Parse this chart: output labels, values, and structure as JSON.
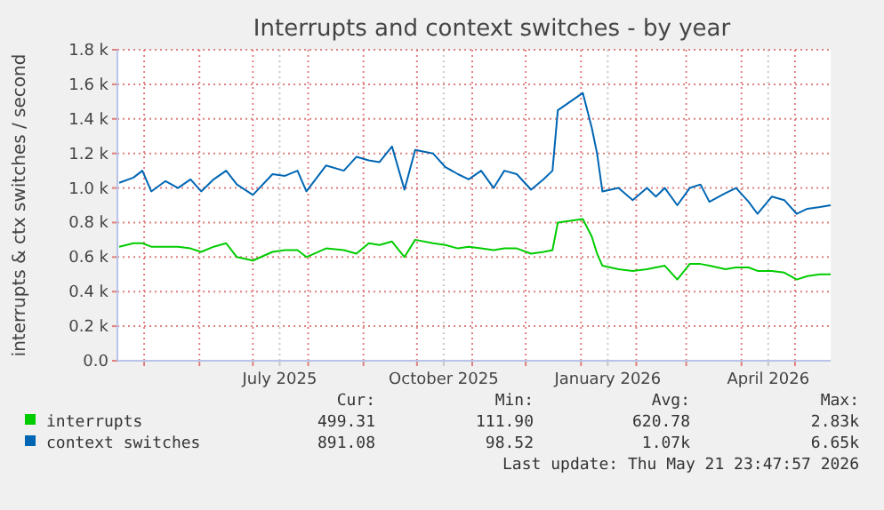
{
  "chart_data": {
    "type": "line",
    "title": "Interrupts and context switches - by year",
    "ylabel": "interrupts & ctx switches / second",
    "x": [
      "2025-04-17",
      "2025-04-25",
      "2025-04-30",
      "2025-05-05",
      "2025-05-13",
      "2025-05-20",
      "2025-05-27",
      "2025-06-02",
      "2025-06-09",
      "2025-06-16",
      "2025-06-22",
      "2025-07-01",
      "2025-07-12",
      "2025-07-19",
      "2025-07-26",
      "2025-07-31",
      "2025-08-11",
      "2025-08-21",
      "2025-08-28",
      "2025-09-04",
      "2025-09-10",
      "2025-09-17",
      "2025-09-24",
      "2025-09-30",
      "2025-10-10",
      "2025-10-17",
      "2025-10-24",
      "2025-10-30",
      "2025-11-06",
      "2025-11-13",
      "2025-11-19",
      "2025-11-26",
      "2025-12-04",
      "2025-12-11",
      "2025-12-16",
      "2025-12-19",
      "2025-12-26",
      "2026-01-02",
      "2026-01-07",
      "2026-01-10",
      "2026-01-13",
      "2026-01-22",
      "2026-01-30",
      "2026-02-07",
      "2026-02-12",
      "2026-02-17",
      "2026-02-24",
      "2026-03-03",
      "2026-03-09",
      "2026-03-14",
      "2026-03-23",
      "2026-03-29",
      "2026-04-05",
      "2026-04-10",
      "2026-04-18",
      "2026-04-25",
      "2026-05-02",
      "2026-05-08",
      "2026-05-15",
      "2026-05-21"
    ],
    "series": [
      {
        "name": "interrupts",
        "color": "#00cc00",
        "values": [
          660,
          680,
          680,
          660,
          660,
          660,
          650,
          630,
          660,
          680,
          600,
          580,
          630,
          640,
          640,
          600,
          650,
          640,
          620,
          680,
          670,
          690,
          600,
          700,
          680,
          670,
          650,
          660,
          650,
          640,
          650,
          650,
          620,
          630,
          640,
          800,
          810,
          820,
          720,
          620,
          550,
          530,
          520,
          530,
          540,
          550,
          470,
          560,
          560,
          550,
          530,
          540,
          540,
          520,
          520,
          510,
          470,
          490,
          500,
          500
        ]
      },
      {
        "name": "context switches",
        "color": "#0066b3",
        "values": [
          1030,
          1060,
          1100,
          980,
          1040,
          1000,
          1050,
          980,
          1050,
          1100,
          1020,
          960,
          1080,
          1070,
          1100,
          980,
          1130,
          1100,
          1180,
          1160,
          1150,
          1240,
          990,
          1220,
          1200,
          1120,
          1080,
          1050,
          1100,
          1000,
          1100,
          1080,
          990,
          1050,
          1100,
          1450,
          1500,
          1550,
          1350,
          1200,
          980,
          1000,
          930,
          1000,
          950,
          1000,
          900,
          1000,
          1020,
          920,
          970,
          1000,
          920,
          850,
          950,
          930,
          850,
          880,
          890,
          900
        ]
      }
    ],
    "xlim": [
      "2025-04-16",
      "2026-05-21"
    ],
    "xticks": [
      {
        "value": "2025-05-01",
        "label": null
      },
      {
        "value": "2025-06-01",
        "label": null
      },
      {
        "value": "2025-07-01",
        "label": null
      },
      {
        "value": "2025-07-16",
        "label": "July 2025"
      },
      {
        "value": "2025-08-01",
        "label": null
      },
      {
        "value": "2025-09-01",
        "label": null
      },
      {
        "value": "2025-10-01",
        "label": null
      },
      {
        "value": "2025-10-16",
        "label": "October 2025"
      },
      {
        "value": "2025-11-01",
        "label": null
      },
      {
        "value": "2025-12-01",
        "label": null
      },
      {
        "value": "2026-01-01",
        "label": null
      },
      {
        "value": "2026-01-16",
        "label": "January 2026"
      },
      {
        "value": "2026-02-01",
        "label": null
      },
      {
        "value": "2026-03-01",
        "label": null
      },
      {
        "value": "2026-04-01",
        "label": null
      },
      {
        "value": "2026-04-16",
        "label": "April 2026"
      },
      {
        "value": "2026-05-01",
        "label": null
      }
    ],
    "ylim": [
      0,
      1800
    ],
    "yticks": [
      {
        "value": 0,
        "label": "0.0"
      },
      {
        "value": 200,
        "label": "0.2 k"
      },
      {
        "value": 400,
        "label": "0.4 k"
      },
      {
        "value": 600,
        "label": "0.6 k"
      },
      {
        "value": 800,
        "label": "0.8 k"
      },
      {
        "value": 1000,
        "label": "1.0 k"
      },
      {
        "value": 1200,
        "label": "1.2 k"
      },
      {
        "value": 1400,
        "label": "1.4 k"
      },
      {
        "value": 1600,
        "label": "1.6 k"
      },
      {
        "value": 1800,
        "label": "1.8 k"
      }
    ],
    "grid": true,
    "legend": "bottom",
    "marker": "none",
    "line_style": "solid",
    "annotations": [
      "Cur:",
      "Min:",
      "Avg:",
      "Max:",
      "499.31",
      "111.90",
      "620.78",
      "2.83k",
      "891.08",
      "98.52",
      "1.07k",
      "6.65k",
      "Last update: Thu May 21 23:47:57 2026"
    ]
  }
}
